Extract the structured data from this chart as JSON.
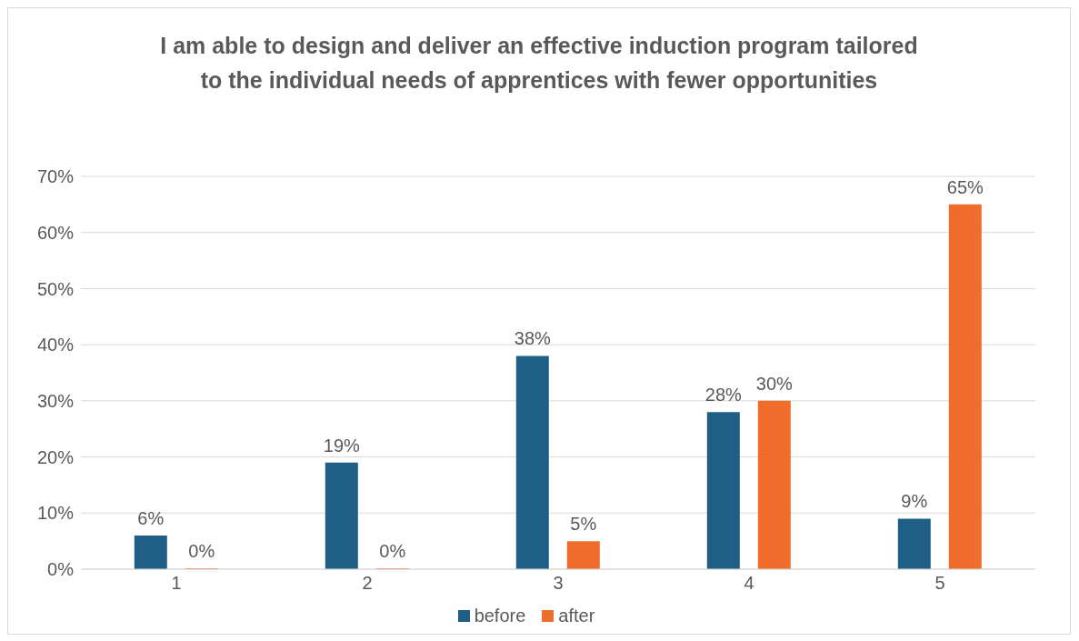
{
  "chart_data": {
    "type": "bar",
    "title": "I am able to design and deliver an effective induction program tailored to the individual needs of apprentices with fewer opportunities",
    "categories": [
      "1",
      "2",
      "3",
      "4",
      "5"
    ],
    "series": [
      {
        "name": "before",
        "color": "#1f5f86",
        "values": [
          6,
          19,
          38,
          28,
          9
        ],
        "value_labels": [
          "6%",
          "19%",
          "38%",
          "28%",
          "9%"
        ]
      },
      {
        "name": "after",
        "color": "#ef6c2a",
        "values": [
          0,
          0,
          5,
          30,
          65
        ],
        "value_labels": [
          "0%",
          "0%",
          "5%",
          "30%",
          "65%"
        ]
      }
    ],
    "ylim": [
      0,
      70
    ],
    "yticks": [
      {
        "value": 0,
        "label": "0%"
      },
      {
        "value": 10,
        "label": "10%"
      },
      {
        "value": 20,
        "label": "20%"
      },
      {
        "value": 30,
        "label": "30%"
      },
      {
        "value": 40,
        "label": "40%"
      },
      {
        "value": 50,
        "label": "50%"
      },
      {
        "value": 60,
        "label": "60%"
      },
      {
        "value": 70,
        "label": "70%"
      }
    ],
    "grid": "y",
    "legend": "bottom"
  }
}
